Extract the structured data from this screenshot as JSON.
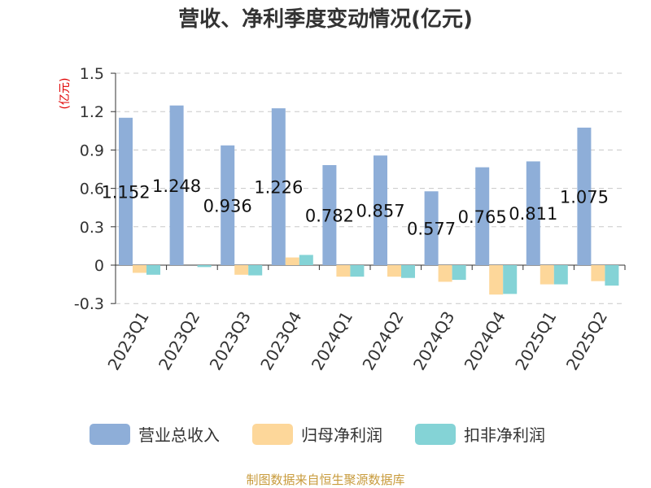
{
  "colors": {
    "revenue": "#8eaed8",
    "net_profit": "#fdd79a",
    "deducted_profit": "#84d3d6",
    "unit": "#e00000",
    "source": "#c89b3c",
    "grid": "#c8c8c8",
    "axis": "#333333"
  },
  "chart_data": {
    "type": "bar",
    "title": "营收、净利季度变动情况(亿元)",
    "unit_label": "(亿元)",
    "categories": [
      "2023Q1",
      "2023Q2",
      "2023Q3",
      "2023Q4",
      "2024Q1",
      "2024Q2",
      "2024Q3",
      "2024Q4",
      "2025Q1",
      "2025Q2"
    ],
    "series": [
      {
        "name": "营业总收入",
        "values": [
          1.152,
          1.248,
          0.936,
          1.226,
          0.782,
          0.857,
          0.577,
          0.765,
          0.811,
          1.075
        ]
      },
      {
        "name": "归母净利润",
        "values": [
          -0.06,
          0.0,
          -0.075,
          0.06,
          -0.09,
          -0.09,
          -0.13,
          -0.23,
          -0.15,
          -0.125
        ]
      },
      {
        "name": "扣非净利润",
        "values": [
          -0.075,
          -0.015,
          -0.08,
          0.08,
          -0.09,
          -0.1,
          -0.115,
          -0.225,
          -0.15,
          -0.16
        ]
      }
    ],
    "data_labels": [
      "1.152",
      "1.248",
      "0.936",
      "1.226",
      "0.782",
      "0.857",
      "0.577",
      "0.765",
      "0.811",
      "1.075"
    ],
    "yticks": [
      "1.5",
      "1.2",
      "0.9",
      "0.6",
      "0.3",
      "0",
      "-0.3"
    ],
    "ylim": [
      -0.3,
      1.5
    ],
    "grid": true,
    "legend_position": "bottom"
  },
  "source_text": "制图数据来自恒生聚源数据库"
}
